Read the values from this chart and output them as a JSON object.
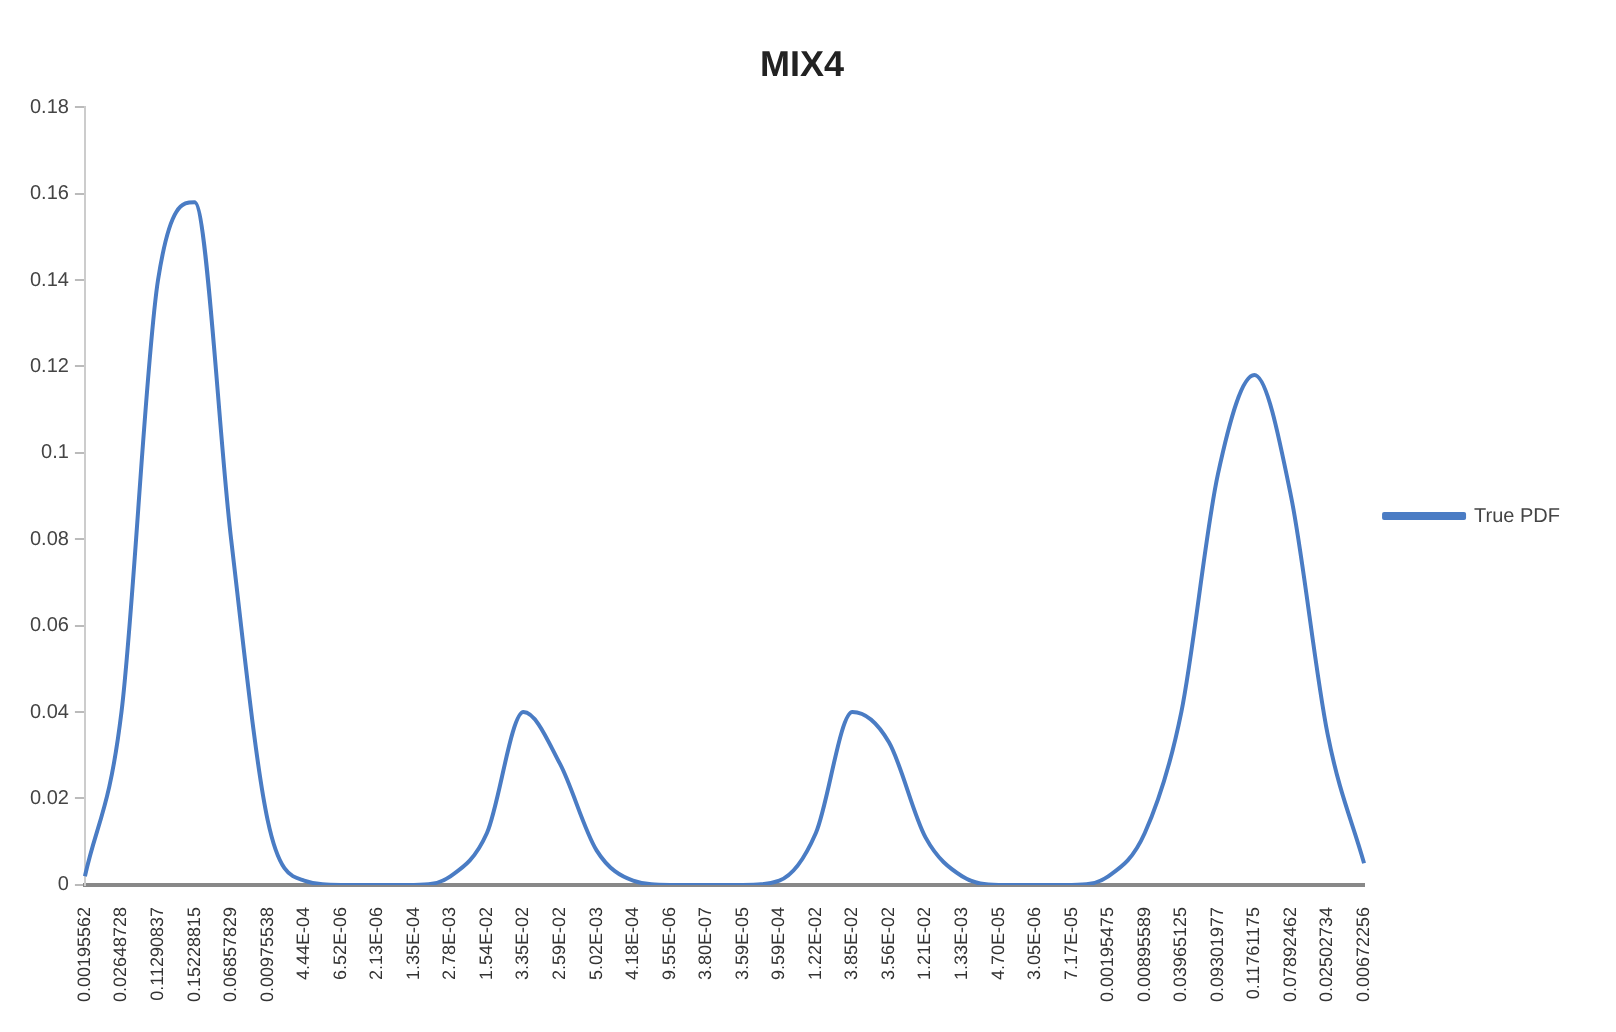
{
  "chart_data": {
    "type": "line",
    "title": "MIX4",
    "categories": [
      "0.00195562",
      "0.02648728",
      "0.11290837",
      "0.15228815",
      "0.06857829",
      "0.00975538",
      "4.44E-04",
      "6.52E-06",
      "2.13E-06",
      "1.35E-04",
      "2.78E-03",
      "1.54E-02",
      "3.35E-02",
      "2.59E-02",
      "5.02E-03",
      "4.18E-04",
      "9.55E-06",
      "3.80E-07",
      "3.59E-05",
      "9.59E-04",
      "1.22E-02",
      "3.85E-02",
      "3.56E-02",
      "1.21E-02",
      "1.33E-03",
      "4.70E-05",
      "3.05E-06",
      "7.17E-05",
      "0.00195475",
      "0.00895589",
      "0.03965125",
      "0.09301977",
      "0.11761175",
      "0.07892462",
      "0.02502734",
      "0.00672256"
    ],
    "series": [
      {
        "name": "True PDF",
        "color": "#4a7cc4",
        "values": [
          0.002,
          0.04,
          0.14,
          0.158,
          0.08,
          0.015,
          0.001,
          0,
          0,
          0,
          0.002,
          0.012,
          0.04,
          0.028,
          0.008,
          0.001,
          0,
          0,
          0,
          0.001,
          0.012,
          0.04,
          0.033,
          0.011,
          0.002,
          0,
          0,
          0,
          0.002,
          0.012,
          0.04,
          0.095,
          0.118,
          0.09,
          0.035,
          0.005
        ]
      }
    ],
    "ylim": [
      0,
      0.18
    ],
    "yticks": [
      0,
      0.02,
      0.04,
      0.06,
      0.08,
      0.1,
      0.12,
      0.14,
      0.16,
      0.18
    ],
    "grid": false,
    "legend": "right",
    "marker": "none",
    "line_style": "solid"
  }
}
